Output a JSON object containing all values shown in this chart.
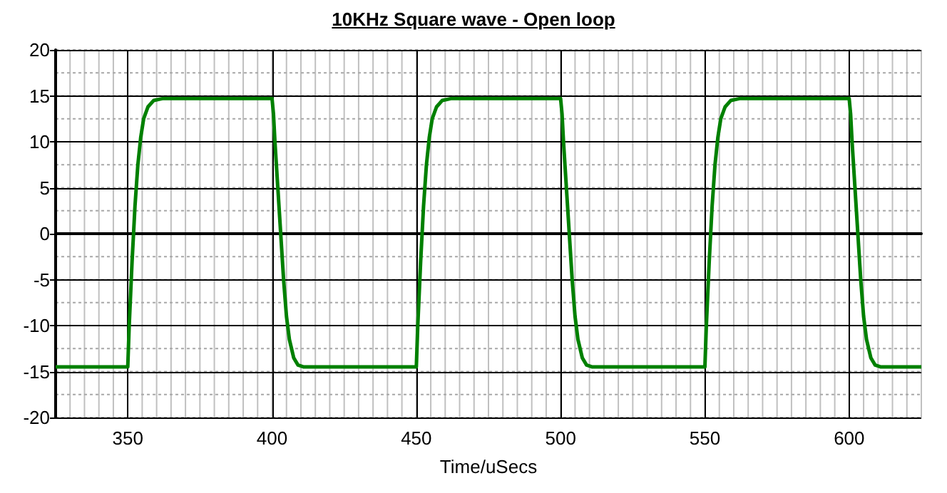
{
  "chart_data": {
    "type": "line",
    "title": "10KHz Square wave - Open loop",
    "xlabel": "Time/uSecs",
    "series": [
      {
        "color": "#008000",
        "x": [
          325,
          350,
          350.5,
          351.5,
          352.5,
          353.5,
          354.5,
          355.5,
          357,
          359,
          362,
          400,
          400.5,
          401,
          402,
          403,
          404,
          405,
          406,
          407.5,
          409,
          411,
          450,
          450.5,
          451.5,
          452.5,
          453.5,
          454.5,
          455.5,
          457,
          459,
          462,
          500,
          500.5,
          501,
          502,
          503,
          504,
          505,
          506,
          507.5,
          509,
          511,
          550,
          550.5,
          551.5,
          552.5,
          553.5,
          554.5,
          555.5,
          557,
          559,
          562,
          600,
          600.5,
          601,
          602,
          603,
          604,
          605,
          606,
          607.5,
          609,
          611,
          625
        ],
        "values": [
          -14.5,
          -14.5,
          -10,
          -3,
          3,
          7.5,
          10.5,
          12.5,
          13.8,
          14.5,
          14.7,
          14.7,
          13,
          10,
          5,
          0,
          -5,
          -9,
          -11.5,
          -13.5,
          -14.3,
          -14.5,
          -14.5,
          -10,
          -3,
          3,
          7.5,
          10.5,
          12.5,
          13.8,
          14.5,
          14.7,
          14.7,
          13,
          10,
          5,
          0,
          -5,
          -9,
          -11.5,
          -13.5,
          -14.3,
          -14.5,
          -14.5,
          -10,
          -3,
          3,
          7.5,
          10.5,
          12.5,
          13.8,
          14.5,
          14.7,
          14.7,
          13,
          10,
          5,
          0,
          -5,
          -9,
          -11.5,
          -13.5,
          -14.3,
          -14.5,
          -14.5
        ]
      }
    ],
    "xlim": [
      325,
      625
    ],
    "xticks": [
      350,
      400,
      450,
      500,
      550,
      600
    ],
    "ylim": [
      -20,
      20
    ],
    "yticks": [
      -20,
      -15,
      -10,
      -5,
      0,
      5,
      10,
      15,
      20
    ],
    "grid": true,
    "marker": "none",
    "line_style": "solid"
  }
}
